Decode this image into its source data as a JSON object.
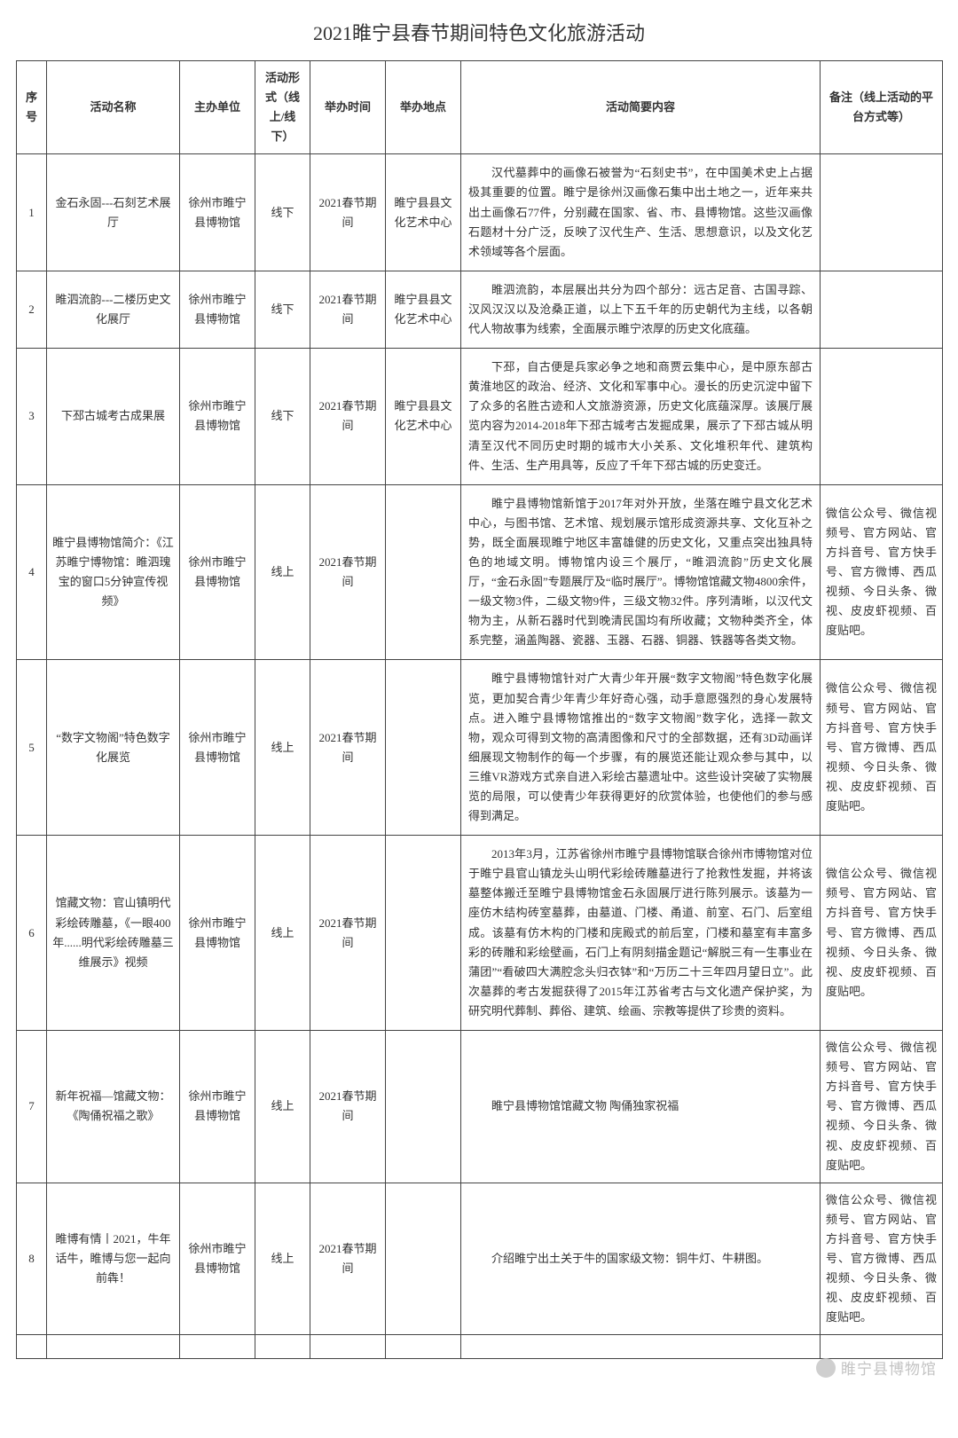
{
  "title": "2021睢宁县春节期间特色文化旅游活动",
  "watermark": "睢宁县博物馆",
  "columns": [
    "序号",
    "活动名称",
    "主办单位",
    "活动形式（线上/线下）",
    "举办时间",
    "举办地点",
    "活动简要内容",
    "备注（线上活动的平台方式等）"
  ],
  "rows": [
    {
      "idx": "1",
      "name": "金石永固---石刻艺术展厅",
      "org": "徐州市睢宁县博物馆",
      "form": "线下",
      "time": "2021春节期间",
      "place": "睢宁县县文化艺术中心",
      "desc": "汉代墓葬中的画像石被誉为“石刻史书”，在中国美术史上占据极其重要的位置。睢宁是徐州汉画像石集中出土地之一，近年来共出土画像石77件，分别藏在国家、省、市、县博物馆。这些汉画像石题材十分广泛，反映了汉代生产、生活、思想意识，以及文化艺术领域等各个层面。",
      "remark": ""
    },
    {
      "idx": "2",
      "name": "睢泗流韵---二楼历史文化展厅",
      "org": "徐州市睢宁县博物馆",
      "form": "线下",
      "time": "2021春节期间",
      "place": "睢宁县县文化艺术中心",
      "desc": "睢泗流韵，本层展出共分为四个部分：远古足音、古国寻踪、汉风汉汉以及沧桑正道，以上下五千年的历史朝代为主线，以各朝代人物故事为线索，全面展示睢宁浓厚的历史文化底蕴。",
      "remark": ""
    },
    {
      "idx": "3",
      "name": "下邳古城考古成果展",
      "org": "徐州市睢宁县博物馆",
      "form": "线下",
      "time": "2021春节期间",
      "place": "睢宁县县文化艺术中心",
      "desc": "下邳，自古便是兵家必争之地和商贾云集中心，是中原东部古黄淮地区的政治、经济、文化和军事中心。漫长的历史沉淀中留下了众多的名胜古迹和人文旅游资源，历史文化底蕴深厚。该展厅展览内容为2014-2018年下邳古城考古发掘成果，展示了下邳古城从明清至汉代不同历史时期的城市大小关系、文化堆积年代、建筑构件、生活、生产用具等，反应了千年下邳古城的历史变迁。",
      "remark": ""
    },
    {
      "idx": "4",
      "name": "睢宁县博物馆简介：《江苏睢宁博物馆：睢泗瑰宝的窗口5分钟宣传视频》",
      "org": "徐州市睢宁县博物馆",
      "form": "线上",
      "time": "2021春节期间",
      "place": "",
      "desc": "睢宁县博物馆新馆于2017年对外开放，坐落在睢宁县文化艺术中心，与图书馆、艺术馆、规划展示馆形成资源共享、文化互补之势，既全面展现睢宁地区丰富雄健的历史文化，又重点突出独具特色的地域文明。博物馆内设三个展厅，“睢泗流韵”历史文化展厅，“金石永固”专题展厅及“临时展厅”。博物馆馆藏文物4800余件，一级文物3件，二级文物9件，三级文物32件。序列清晰，以汉代文物为主，从新石器时代到晚清民国均有所收藏；文物种类齐全，体系完整，涵盖陶器、瓷器、玉器、石器、铜器、铁器等各类文物。",
      "remark": "微信公众号、微信视频号、官方网站、官方抖音号、官方快手号、官方微博、西瓜视频、今日头条、微视、皮皮虾视频、百度贴吧。"
    },
    {
      "idx": "5",
      "name": "“数字文物阁”特色数字化展览",
      "org": "徐州市睢宁县博物馆",
      "form": "线上",
      "time": "2021春节期间",
      "place": "",
      "desc": "睢宁县博物馆针对广大青少年开展“数字文物阁”特色数字化展览，更加契合青少年青少年好奇心强，动手意愿强烈的身心发展特点。进入睢宁县博物馆推出的“数字文物阁”数字化，选择一款文物，观众可得到文物的高清图像和尺寸的全部数据，还有3D动画详细展现文物制作的每一个步骤，有的展览还能让观众参与其中，以三维VR游戏方式亲自进入彩绘古墓遗址中。这些设计突破了实物展览的局限，可以使青少年获得更好的欣赏体验，也使他们的参与感得到满足。",
      "remark": "微信公众号、微信视频号、官方网站、官方抖音号、官方快手号、官方微博、西瓜视频、今日头条、微视、皮皮虾视频、百度贴吧。"
    },
    {
      "idx": "6",
      "name": "馆藏文物：官山镇明代彩绘砖雕墓，《一眼400年......明代彩绘砖雕墓三维展示》视频",
      "org": "徐州市睢宁县博物馆",
      "form": "线上",
      "time": "2021春节期间",
      "place": "",
      "desc": "2013年3月，江苏省徐州市睢宁县博物馆联合徐州市博物馆对位于睢宁县官山镇龙头山明代彩绘砖雕墓进行了抢救性发掘，并将该墓整体搬迁至睢宁县博物馆金石永固展厅进行陈列展示。该墓为一座仿木结构砖室墓葬，由墓道、门楼、甬道、前室、石门、后室组成。该墓有仿木构的门楼和庑殿式的前后室，门楼和墓室有丰富多彩的砖雕和彩绘壁画，石门上有阴刻描金题记“解脱三有一生事业在蒲团”“看破四大满腔念头归衣钵”和“万历二十三年四月望日立”。此次墓葬的考古发掘获得了2015年江苏省考古与文化遗产保护奖，为研究明代葬制、葬俗、建筑、绘画、宗教等提供了珍贵的资料。",
      "remark": "微信公众号、微信视频号、官方网站、官方抖音号、官方快手号、官方微博、西瓜视频、今日头条、微视、皮皮虾视频、百度贴吧。"
    },
    {
      "idx": "7",
      "name": "新年祝福—馆藏文物：《陶俑祝福之歌》",
      "org": "徐州市睢宁县博物馆",
      "form": "线上",
      "time": "2021春节期间",
      "place": "",
      "desc": "睢宁县博物馆馆藏文物  陶俑独家祝福",
      "remark": "微信公众号、微信视频号、官方网站、官方抖音号、官方快手号、官方微博、西瓜视频、今日头条、微视、皮皮虾视频、百度贴吧。"
    },
    {
      "idx": "8",
      "name": "睢博有情丨2021，牛年话牛，睢博与您一起向前犇！",
      "org": "徐州市睢宁县博物馆",
      "form": "线上",
      "time": "2021春节期间",
      "place": "",
      "desc": "介绍睢宁出土关于牛的国家级文物：铜牛灯、牛耕图。",
      "remark": "微信公众号、微信视频号、官方网站、官方抖音号、官方快手号、官方微博、西瓜视频、今日头条、微视、皮皮虾视频、百度贴吧。"
    }
  ]
}
